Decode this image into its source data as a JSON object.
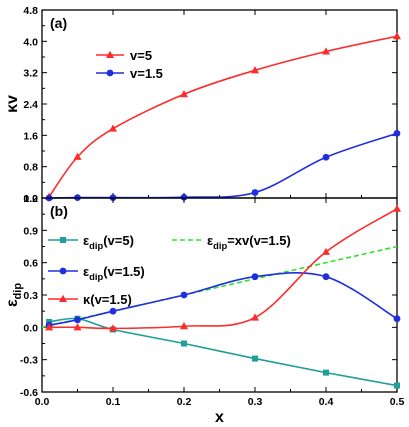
{
  "chart_data": [
    {
      "type": "line",
      "panel_label": "(a)",
      "xlim": [
        0.0,
        0.5
      ],
      "ylim": [
        0.0,
        4.8
      ],
      "ylabel": "κv",
      "yticks": [
        "0.0",
        "0.8",
        "1.6",
        "2.4",
        "3.2",
        "4.0",
        "4.8"
      ],
      "legend_position": "top-left",
      "series": [
        {
          "name": "v=5",
          "color": "#ff2a2a",
          "marker": "triangle",
          "x": [
            0.01,
            0.05,
            0.1,
            0.2,
            0.3,
            0.4,
            0.5
          ],
          "y": [
            0.03,
            1.05,
            1.77,
            2.65,
            3.26,
            3.74,
            4.13
          ]
        },
        {
          "name": "v=1.5",
          "color": "#1f2fe0",
          "marker": "circle",
          "x": [
            0.01,
            0.05,
            0.1,
            0.2,
            0.3,
            0.4,
            0.5
          ],
          "y": [
            0.0,
            0.01,
            0.01,
            0.02,
            0.14,
            1.04,
            1.65
          ]
        }
      ]
    },
    {
      "type": "line",
      "panel_label": "(b)",
      "xlim": [
        0.0,
        0.5
      ],
      "ylim": [
        -0.6,
        1.2
      ],
      "xlabel": "x",
      "ylabel": "ε",
      "ylabel_sub": "dip",
      "xticks": [
        "0.0",
        "0.1",
        "0.2",
        "0.3",
        "0.4",
        "0.5"
      ],
      "yticks": [
        "-0.6",
        "-0.3",
        "0.0",
        "0.3",
        "0.6",
        "0.9",
        "1.2"
      ],
      "legend_position": "top",
      "series": [
        {
          "name": "ε",
          "name_sub": "dip",
          "name_rest": "(v=5)",
          "color": "#1e9f98",
          "marker": "square",
          "x": [
            0.01,
            0.05,
            0.1,
            0.2,
            0.3,
            0.4,
            0.5
          ],
          "y": [
            0.05,
            0.08,
            -0.02,
            -0.15,
            -0.29,
            -0.42,
            -0.54
          ]
        },
        {
          "name": "ε",
          "name_sub": "dip",
          "name_rest": "=xv(v=1.5)",
          "color": "#2ee32e",
          "marker": "none",
          "dashed": true,
          "x": [
            0.0,
            0.5
          ],
          "y": [
            0.0,
            0.75
          ]
        },
        {
          "name": "ε",
          "name_sub": "dip",
          "name_rest": "(v=1.5)",
          "color": "#1f2fe0",
          "marker": "circle",
          "x": [
            0.01,
            0.05,
            0.1,
            0.2,
            0.3,
            0.4,
            0.5
          ],
          "y": [
            0.02,
            0.07,
            0.15,
            0.3,
            0.47,
            0.47,
            0.08
          ]
        },
        {
          "name": "κ(v=1.5)",
          "color": "#ff2a2a",
          "marker": "triangle",
          "x": [
            0.01,
            0.05,
            0.1,
            0.2,
            0.3,
            0.4,
            0.5
          ],
          "y": [
            0.0,
            0.0,
            -0.01,
            0.01,
            0.09,
            0.7,
            1.1
          ]
        }
      ]
    }
  ]
}
